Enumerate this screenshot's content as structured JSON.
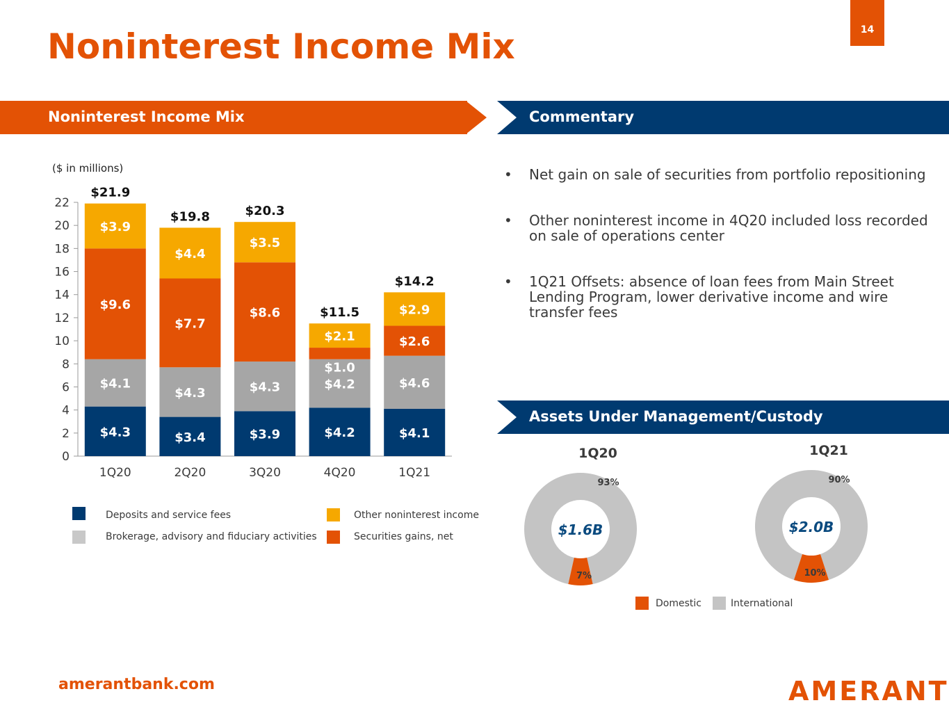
{
  "page": {
    "title": "Noninterest Income Mix",
    "number": "14",
    "footer": "amerantbank.com",
    "logo": "AMERANT"
  },
  "banners": {
    "left": "Noninterest Income Mix",
    "commentary": "Commentary",
    "aum": "Assets Under Management/Custody"
  },
  "units": "($ in millions)",
  "commentary": [
    "Net gain on sale of securities from portfolio repositioning",
    "Other noninterest income in 4Q20 included loss recorded on sale of operations center",
    "1Q21 Offsets: absence of loan fees from Main Street Lending Program, lower derivative income and wire transfer fees"
  ],
  "chart_data": [
    {
      "type": "bar",
      "stacked": true,
      "categories": [
        "1Q20",
        "2Q20",
        "3Q20",
        "4Q20",
        "1Q21"
      ],
      "series": [
        {
          "name": "Deposits and service fees",
          "color": "#003a70",
          "values": [
            4.3,
            3.4,
            3.9,
            4.2,
            4.1
          ],
          "labels": [
            "$4.3",
            "$3.4",
            "$3.9",
            "$4.2",
            "$4.1"
          ]
        },
        {
          "name": "Brokerage, advisory and fiduciary activities",
          "color": "#a6a6a6",
          "values": [
            4.1,
            4.3,
            4.3,
            4.2,
            4.6
          ],
          "labels": [
            "$4.1",
            "$4.3",
            "$4.3",
            "$4.2",
            "$4.6"
          ]
        },
        {
          "name": "Securities gains, net",
          "color": "#e35205",
          "values": [
            9.6,
            7.7,
            8.6,
            1.0,
            2.6
          ],
          "labels": [
            "$9.6",
            "$7.7",
            "$8.6",
            "$1.0",
            "$2.6"
          ]
        },
        {
          "name": "Other noninterest income",
          "color": "#f6a800",
          "values": [
            3.9,
            4.4,
            3.5,
            2.1,
            2.9
          ],
          "labels": [
            "$3.9",
            "$4.4",
            "$3.5",
            "$2.1",
            "$2.9"
          ]
        }
      ],
      "totals": [
        "$21.9",
        "$19.8",
        "$20.3",
        "$11.5",
        "$14.2"
      ],
      "yticks": [
        "0",
        "2",
        "4",
        "6",
        "8",
        "10",
        "12",
        "14",
        "16",
        "18",
        "20",
        "22"
      ],
      "ylim": [
        0,
        22
      ],
      "legend": [
        {
          "label": "Deposits and service fees",
          "color": "#003a70"
        },
        {
          "label": "Brokerage, advisory and fiduciary activities",
          "color": "#c8c8c8"
        },
        {
          "label": "Other noninterest income",
          "color": "#f6a800"
        },
        {
          "label": "Securities gains, net",
          "color": "#e35205"
        }
      ]
    },
    {
      "type": "pie",
      "donut": true,
      "charts": [
        {
          "title": "1Q20",
          "center": "$1.6B",
          "slices": [
            {
              "name": "Domestic",
              "value": 7,
              "label": "7%",
              "color": "#e35205"
            },
            {
              "name": "International",
              "value": 93,
              "label": "93%",
              "color": "#c4c4c4"
            }
          ]
        },
        {
          "title": "1Q21",
          "center": "$2.0B",
          "slices": [
            {
              "name": "Domestic",
              "value": 10,
              "label": "10%",
              "color": "#e35205"
            },
            {
              "name": "International",
              "value": 90,
              "label": "90%",
              "color": "#c4c4c4"
            }
          ]
        }
      ],
      "legend": [
        {
          "label": "Domestic",
          "color": "#e35205"
        },
        {
          "label": "International",
          "color": "#c4c4c4"
        }
      ]
    }
  ]
}
